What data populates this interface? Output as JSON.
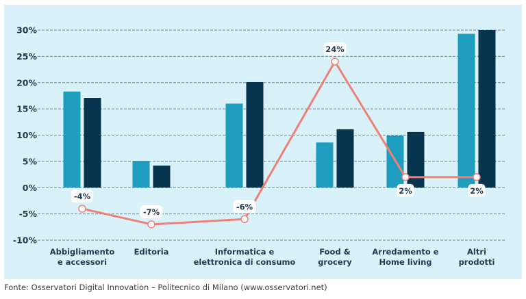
{
  "chart_data": {
    "type": "bar",
    "title": "",
    "xlabel": "",
    "ylabel": "",
    "ylim": [
      -10,
      30
    ],
    "yticks": [
      30,
      25,
      20,
      15,
      10,
      5,
      0,
      -5,
      -10
    ],
    "ytick_labels": [
      "30%",
      "25%",
      "20%",
      "15%",
      "10%",
      "5%",
      "0%",
      "-5%",
      "-10%"
    ],
    "grid": true,
    "categories": [
      [
        "Abbigliamento",
        "e accessori"
      ],
      [
        "Editoria"
      ],
      [
        "Informatica e",
        "elettronica di consumo"
      ],
      [
        "Food &",
        "grocery"
      ],
      [
        "Arredamento e",
        "Home living"
      ],
      [
        "Altri",
        "prodotti"
      ]
    ],
    "series": [
      {
        "name": "series-light",
        "type": "bar",
        "color": "#1f9dbf",
        "values": [
          18.3,
          5.1,
          16.0,
          8.6,
          9.9,
          29.3
        ]
      },
      {
        "name": "series-dark",
        "type": "bar",
        "color": "#06344f",
        "values": [
          17.1,
          4.2,
          20.1,
          11.1,
          10.6,
          30.0
        ]
      },
      {
        "name": "series-line",
        "type": "line",
        "color": "#ef8076",
        "values": [
          -4,
          -7,
          -6,
          24,
          2,
          2
        ],
        "labels": [
          "-4%",
          "-7%",
          "-6%",
          "24%",
          "2%",
          "2%"
        ],
        "label_side": [
          "above",
          "above",
          "above",
          "above",
          "below",
          "below"
        ]
      }
    ]
  },
  "footer": {
    "source": "Fonte: Osservatori Digital Innovation – Politecnico di Milano (www.osservatori.net)"
  }
}
